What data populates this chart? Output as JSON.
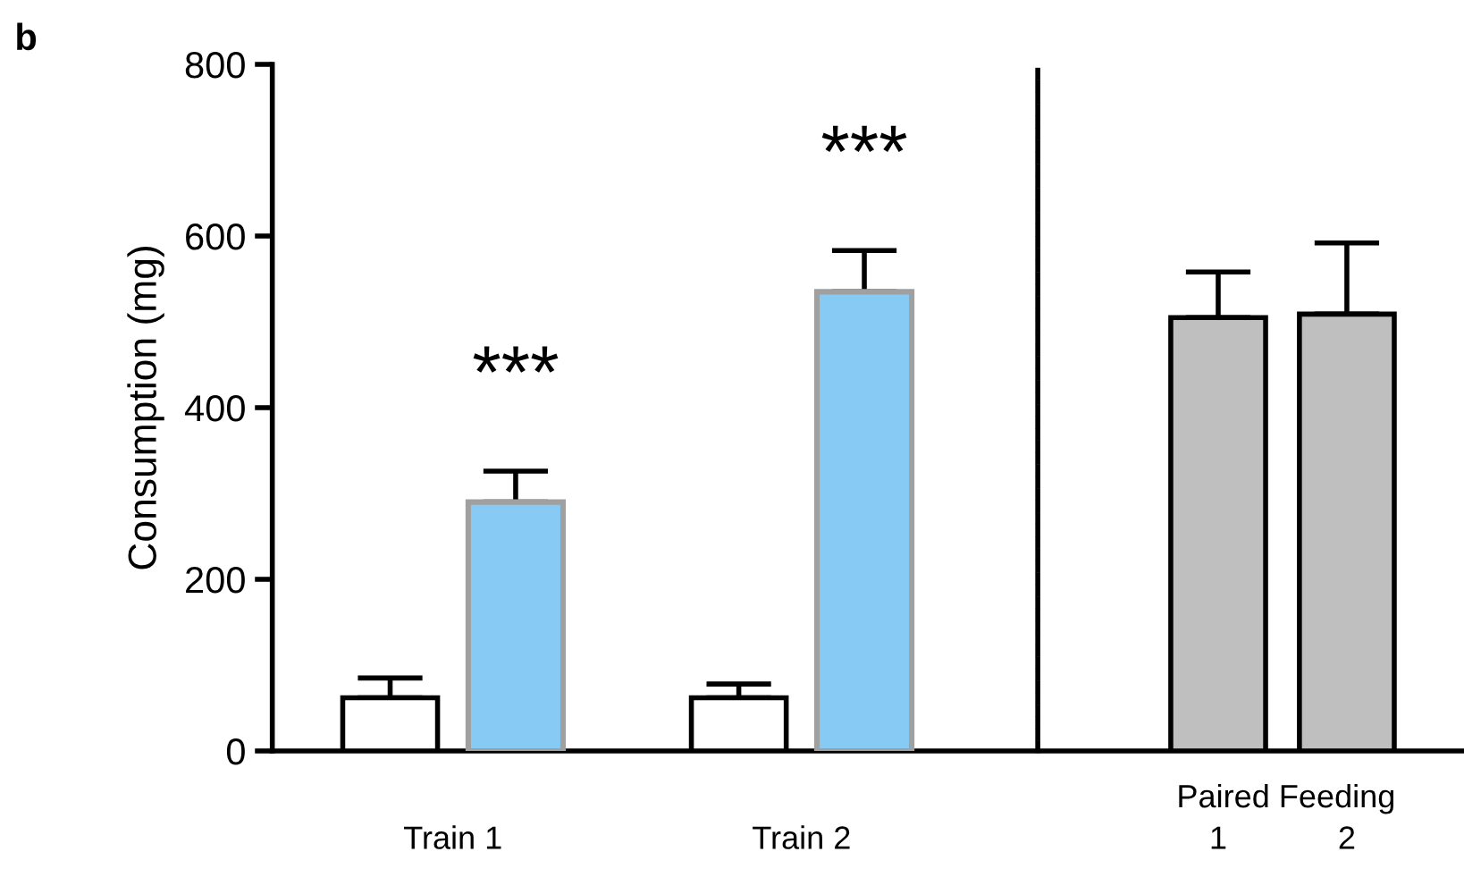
{
  "chart_data": {
    "type": "bar",
    "ylabel": "Consumption (mg)",
    "categories": [
      "Train 1",
      "Train 2",
      "1",
      "2"
    ],
    "series": [
      {
        "color": "#ffffff",
        "values": [
          62,
          62,
          null,
          null
        ],
        "errors": [
          23,
          16,
          null,
          null
        ]
      },
      {
        "color": "#87cbf5",
        "values": [
          290,
          535,
          null,
          null
        ],
        "errors": [
          36,
          48,
          null,
          null
        ]
      },
      {
        "color": "#bfbfbf",
        "values": [
          null,
          null,
          505,
          509
        ],
        "errors": [
          null,
          null,
          53,
          83
        ]
      }
    ],
    "ylim": [
      0,
      800
    ],
    "yticks": [
      0,
      200,
      400,
      600,
      800
    ],
    "grid": false,
    "legend": false,
    "annotations": [
      "b",
      "***",
      "***",
      "Paired Feeding"
    ]
  }
}
